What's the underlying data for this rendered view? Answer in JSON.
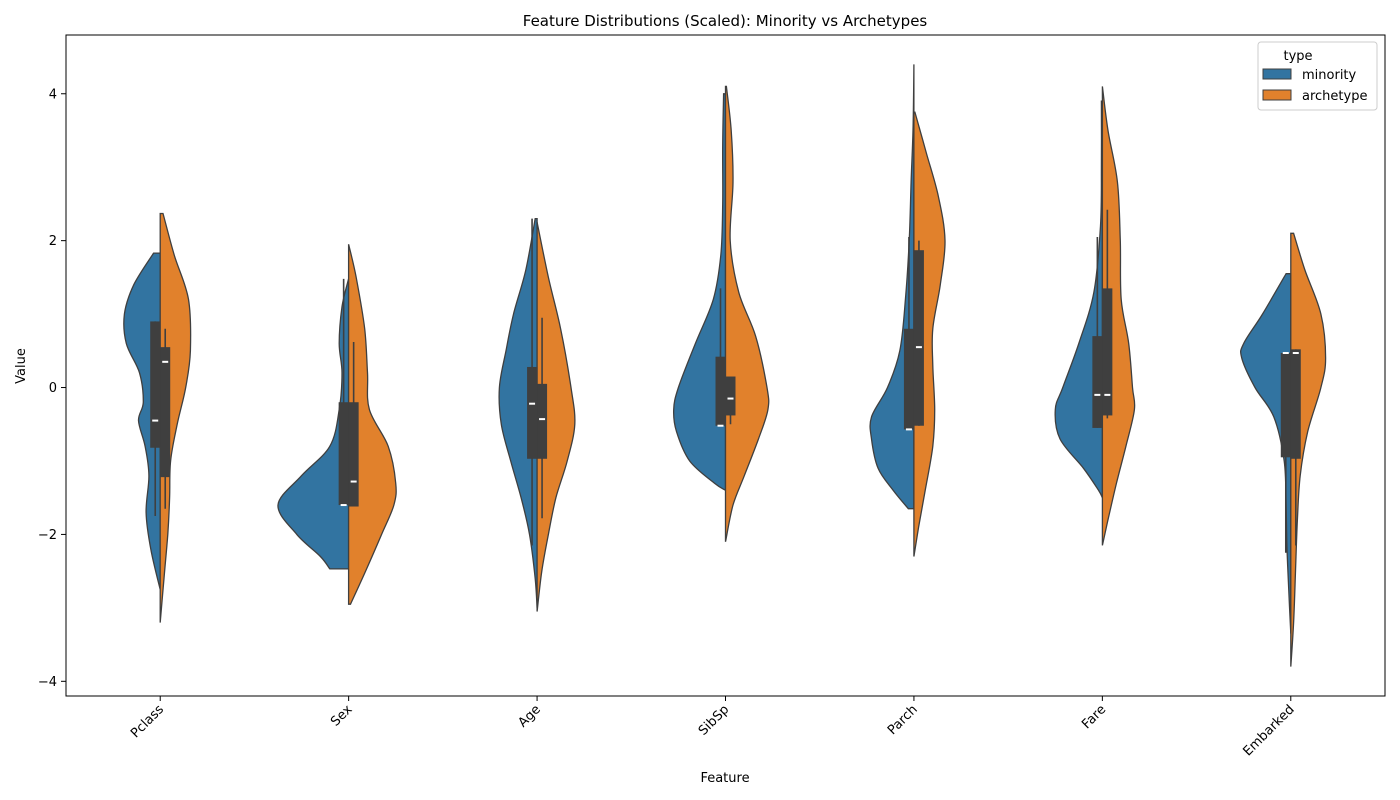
{
  "chart_data": {
    "type": "violin",
    "title": "Feature Distributions (Scaled): Minority vs Archetypes",
    "xlabel": "Feature",
    "ylabel": "Value",
    "ylim": [
      -4.2,
      4.8
    ],
    "yticks": [
      -4,
      -2,
      0,
      2,
      4
    ],
    "yticklabels": [
      "−4",
      "−2",
      "0",
      "2",
      "4"
    ],
    "categories": [
      "Pclass",
      "Sex",
      "Age",
      "SibSp",
      "Parch",
      "Fare",
      "Embarked"
    ],
    "grid": false,
    "legend": {
      "title": "type",
      "placement": "top-right",
      "entries": [
        {
          "name": "minority",
          "color": "#3274a1"
        },
        {
          "name": "archetype",
          "color": "#e1812c"
        }
      ]
    },
    "split": true,
    "series": [
      {
        "name": "minority",
        "color": "#3274a1",
        "side": "left",
        "violins": [
          {
            "profile": [
              [
                1.83,
                0.07
              ],
              [
                1.4,
                0.28
              ],
              [
                1.0,
                0.38
              ],
              [
                0.6,
                0.36
              ],
              [
                0.2,
                0.22
              ],
              [
                -0.2,
                0.18
              ],
              [
                -0.45,
                0.23
              ],
              [
                -0.8,
                0.16
              ],
              [
                -1.2,
                0.12
              ],
              [
                -1.7,
                0.15
              ],
              [
                -2.2,
                0.1
              ],
              [
                -2.75,
                0.0
              ]
            ],
            "q1": -0.82,
            "median": -0.45,
            "q3": 0.9,
            "wlow": -1.75,
            "whigh": 0.9
          },
          {
            "profile": [
              [
                1.48,
                0.0
              ],
              [
                1.1,
                0.07
              ],
              [
                0.6,
                0.1
              ],
              [
                0.2,
                0.07
              ],
              [
                -0.3,
                0.1
              ],
              [
                -0.8,
                0.2
              ],
              [
                -1.2,
                0.5
              ],
              [
                -1.6,
                0.75
              ],
              [
                -2.0,
                0.55
              ],
              [
                -2.3,
                0.3
              ],
              [
                -2.47,
                0.2
              ]
            ],
            "q1": -1.6,
            "median": -1.6,
            "q3": -0.2,
            "wlow": -1.6,
            "whigh": 1.48
          },
          {
            "profile": [
              [
                2.3,
                0.02
              ],
              [
                1.6,
                0.12
              ],
              [
                1.0,
                0.25
              ],
              [
                0.5,
                0.33
              ],
              [
                0.0,
                0.4
              ],
              [
                -0.5,
                0.38
              ],
              [
                -1.0,
                0.28
              ],
              [
                -1.5,
                0.17
              ],
              [
                -2.0,
                0.08
              ],
              [
                -2.6,
                0.02
              ],
              [
                -3.0,
                0.0
              ]
            ],
            "q1": -0.97,
            "median": -0.22,
            "q3": 0.28,
            "wlow": -2.15,
            "whigh": 2.3
          },
          {
            "profile": [
              [
                4.0,
                0.02
              ],
              [
                3.3,
                0.03
              ],
              [
                2.5,
                0.03
              ],
              [
                1.8,
                0.05
              ],
              [
                1.2,
                0.13
              ],
              [
                0.6,
                0.32
              ],
              [
                0.0,
                0.5
              ],
              [
                -0.3,
                0.55
              ],
              [
                -0.6,
                0.52
              ],
              [
                -1.0,
                0.38
              ],
              [
                -1.3,
                0.12
              ],
              [
                -1.4,
                0.0
              ]
            ],
            "q1": -0.52,
            "median": -0.52,
            "q3": 0.42,
            "wlow": -0.52,
            "whigh": 1.35
          },
          {
            "profile": [
              [
                4.4,
                0.0
              ],
              [
                3.5,
                0.01
              ],
              [
                2.8,
                0.03
              ],
              [
                2.0,
                0.05
              ],
              [
                1.2,
                0.09
              ],
              [
                0.5,
                0.15
              ],
              [
                0.0,
                0.28
              ],
              [
                -0.4,
                0.45
              ],
              [
                -0.7,
                0.45
              ],
              [
                -1.1,
                0.38
              ],
              [
                -1.4,
                0.22
              ],
              [
                -1.65,
                0.06
              ]
            ],
            "q1": -0.57,
            "median": -0.57,
            "q3": 0.8,
            "wlow": -0.57,
            "whigh": 2.05
          },
          {
            "profile": [
              [
                3.9,
                0.01
              ],
              [
                3.0,
                0.01
              ],
              [
                2.2,
                0.02
              ],
              [
                1.3,
                0.09
              ],
              [
                0.6,
                0.25
              ],
              [
                0.0,
                0.42
              ],
              [
                -0.3,
                0.5
              ],
              [
                -0.7,
                0.45
              ],
              [
                -1.1,
                0.2
              ],
              [
                -1.4,
                0.04
              ],
              [
                -1.5,
                0.0
              ]
            ],
            "q1": -0.55,
            "median": -0.1,
            "q3": 0.7,
            "wlow": -0.55,
            "whigh": 2.05
          },
          {
            "profile": [
              [
                1.55,
                0.05
              ],
              [
                1.0,
                0.3
              ],
              [
                0.6,
                0.5
              ],
              [
                0.4,
                0.52
              ],
              [
                0.0,
                0.38
              ],
              [
                -0.4,
                0.18
              ],
              [
                -1.0,
                0.07
              ],
              [
                -1.6,
                0.05
              ],
              [
                -2.2,
                0.04
              ],
              [
                -2.8,
                0.02
              ],
              [
                -3.35,
                0.0
              ]
            ],
            "q1": -0.95,
            "median": 0.47,
            "q3": 0.47,
            "wlow": -2.25,
            "whigh": 0.47
          }
        ]
      },
      {
        "name": "archetype",
        "color": "#e1812c",
        "side": "right",
        "violins": [
          {
            "profile": [
              [
                2.37,
                0.03
              ],
              [
                1.8,
                0.15
              ],
              [
                1.2,
                0.3
              ],
              [
                0.5,
                0.32
              ],
              [
                0.0,
                0.27
              ],
              [
                -0.5,
                0.18
              ],
              [
                -1.0,
                0.11
              ],
              [
                -1.5,
                0.1
              ],
              [
                -2.0,
                0.08
              ],
              [
                -2.6,
                0.04
              ],
              [
                -3.2,
                0.0
              ]
            ],
            "q1": -1.22,
            "median": 0.35,
            "q3": 0.55,
            "wlow": -1.65,
            "whigh": 0.8
          },
          {
            "profile": [
              [
                1.95,
                0.0
              ],
              [
                1.5,
                0.08
              ],
              [
                0.8,
                0.17
              ],
              [
                0.2,
                0.2
              ],
              [
                -0.3,
                0.22
              ],
              [
                -0.8,
                0.42
              ],
              [
                -1.3,
                0.5
              ],
              [
                -1.6,
                0.48
              ],
              [
                -2.0,
                0.35
              ],
              [
                -2.5,
                0.18
              ],
              [
                -2.95,
                0.02
              ]
            ],
            "q1": -1.62,
            "median": -1.28,
            "q3": -0.2,
            "wlow": -1.62,
            "whigh": 0.62
          },
          {
            "profile": [
              [
                2.25,
                0.0
              ],
              [
                1.5,
                0.12
              ],
              [
                0.8,
                0.25
              ],
              [
                0.0,
                0.36
              ],
              [
                -0.5,
                0.4
              ],
              [
                -1.0,
                0.32
              ],
              [
                -1.5,
                0.2
              ],
              [
                -2.0,
                0.12
              ],
              [
                -2.5,
                0.05
              ],
              [
                -3.05,
                0.0
              ]
            ],
            "q1": -0.97,
            "median": -0.43,
            "q3": 0.05,
            "wlow": -1.78,
            "whigh": 0.95
          },
          {
            "profile": [
              [
                4.1,
                0.01
              ],
              [
                3.5,
                0.06
              ],
              [
                2.8,
                0.08
              ],
              [
                2.0,
                0.05
              ],
              [
                1.3,
                0.14
              ],
              [
                0.7,
                0.32
              ],
              [
                0.0,
                0.44
              ],
              [
                -0.3,
                0.45
              ],
              [
                -0.7,
                0.35
              ],
              [
                -1.2,
                0.2
              ],
              [
                -1.6,
                0.08
              ],
              [
                -2.1,
                0.0
              ]
            ],
            "q1": -0.38,
            "median": -0.15,
            "q3": 0.15,
            "wlow": -0.5,
            "whigh": 0.15
          },
          {
            "profile": [
              [
                3.75,
                0.01
              ],
              [
                3.2,
                0.13
              ],
              [
                2.6,
                0.26
              ],
              [
                2.0,
                0.33
              ],
              [
                1.4,
                0.28
              ],
              [
                0.8,
                0.2
              ],
              [
                0.3,
                0.2
              ],
              [
                -0.3,
                0.22
              ],
              [
                -0.8,
                0.2
              ],
              [
                -1.4,
                0.12
              ],
              [
                -1.9,
                0.05
              ],
              [
                -2.3,
                0.0
              ]
            ],
            "q1": -0.52,
            "median": 0.55,
            "q3": 1.87,
            "wlow": -0.52,
            "whigh": 2.0
          },
          {
            "profile": [
              [
                4.1,
                0.0
              ],
              [
                3.5,
                0.06
              ],
              [
                2.8,
                0.16
              ],
              [
                2.0,
                0.19
              ],
              [
                1.2,
                0.2
              ],
              [
                0.6,
                0.28
              ],
              [
                0.0,
                0.32
              ],
              [
                -0.3,
                0.34
              ],
              [
                -0.8,
                0.25
              ],
              [
                -1.3,
                0.15
              ],
              [
                -1.8,
                0.06
              ],
              [
                -2.15,
                0.0
              ]
            ],
            "q1": -0.38,
            "median": -0.1,
            "q3": 1.35,
            "wlow": -0.42,
            "whigh": 2.42
          },
          {
            "profile": [
              [
                2.1,
                0.03
              ],
              [
                1.6,
                0.15
              ],
              [
                1.0,
                0.32
              ],
              [
                0.4,
                0.37
              ],
              [
                0.0,
                0.32
              ],
              [
                -0.6,
                0.18
              ],
              [
                -1.2,
                0.1
              ],
              [
                -1.8,
                0.07
              ],
              [
                -2.5,
                0.05
              ],
              [
                -3.2,
                0.03
              ],
              [
                -3.8,
                0.0
              ]
            ],
            "q1": -0.97,
            "median": 0.47,
            "q3": 0.52,
            "wlow": -2.15,
            "whigh": 0.52
          }
        ]
      }
    ]
  }
}
